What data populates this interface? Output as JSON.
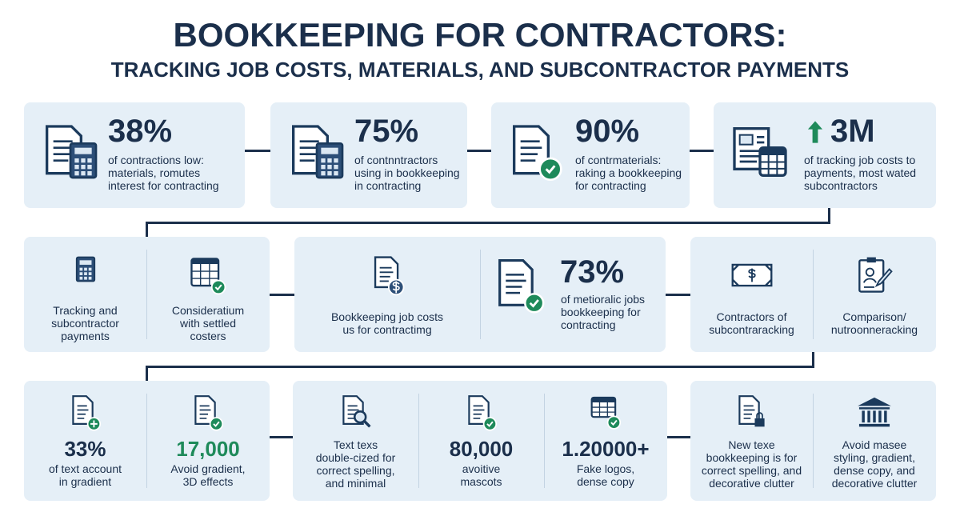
{
  "header": {
    "title": "BOOKKEEPING FOR CONTRACTORS:",
    "subtitle": "TRACKING JOB COSTS, MATERIALS, AND SUBCONTRACTOR PAYMENTS"
  },
  "row1": [
    {
      "stat": "38%",
      "lines": [
        "of contractions low:",
        "materials, romutes",
        "interest for contracting"
      ]
    },
    {
      "stat": "75%",
      "lines": [
        "of contnntractors",
        "using in bookkeeping",
        "in contracting"
      ]
    },
    {
      "stat": "90%",
      "lines": [
        "of contrmaterials:",
        "raking a bookkeeping",
        "for contracting"
      ]
    },
    {
      "stat": "3M",
      "lines": [
        "of tracking job costs to",
        "payments, most wated",
        "subcontractors"
      ]
    }
  ],
  "row2": [
    [
      {
        "lines": [
          "Tracking and",
          "subcontractor",
          "payments"
        ]
      },
      {
        "lines": [
          "Consideratium",
          "with settled",
          "costers"
        ]
      }
    ],
    [
      {
        "lines": [
          "Bookkeeping job costs",
          "us for contractimg"
        ]
      },
      {
        "stat": "73%",
        "lines": [
          "of metioralic jobs",
          "bookkeeping for",
          "contracting"
        ]
      }
    ],
    [
      {
        "lines": [
          "Contractors of",
          "subcontraracking"
        ]
      },
      {
        "lines": [
          "Comparison/",
          "nutroonneracking"
        ]
      }
    ]
  ],
  "row3": [
    [
      {
        "stat": "33%",
        "lines": [
          "of text account",
          "in gradient"
        ]
      },
      {
        "stat": "17,000",
        "lines": [
          "Avoid gradient,",
          "3D effects"
        ]
      }
    ],
    [
      {
        "lines": [
          "Text texs",
          "double-cized for",
          "correct spelling,",
          "and minimal"
        ]
      },
      {
        "stat": "80,000",
        "lines": [
          "avoitive",
          "mascots"
        ]
      },
      {
        "stat": "1.20000+",
        "lines": [
          "Fake logos,",
          "dense copy"
        ]
      }
    ],
    [
      {
        "lines": [
          "New texe",
          "bookkeeping is for",
          "correct spelling, and",
          "decorative clutter"
        ]
      },
      {
        "lines": [
          "Avoid masee",
          "styling, gradient,",
          "dense copy, and",
          "decorative clutter"
        ]
      }
    ]
  ]
}
